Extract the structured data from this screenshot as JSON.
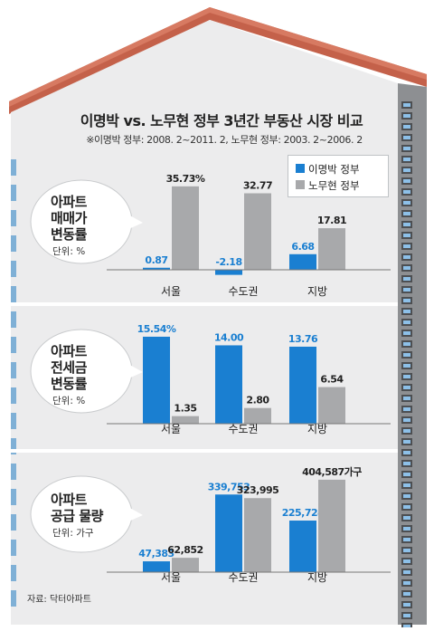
{
  "title": "이명박 vs. 노무현 정부 3년간 부동산 시장 비교",
  "note": "※이명박 정부: 2008. 2~2011. 2, 노무현 정부: 2003. 2~2006. 2",
  "source": "자료: 닥터아파트",
  "legend": [
    {
      "name": "이명박 정부",
      "color": "#1a7fd1"
    },
    {
      "name": "노무현 정부",
      "color": "#a8a9ab"
    }
  ],
  "colors": {
    "lee": "#1a7fd1",
    "roh": "#a8a9ab",
    "lee_label": "#1a7fd1",
    "roh_label": "#222222",
    "roof": "#c4614a",
    "wall": "#ededee"
  },
  "chart_data": [
    {
      "type": "bar",
      "label_lines": [
        "아파트",
        "매매가",
        "변동률"
      ],
      "unit": "단위: %",
      "categories": [
        "서울",
        "수도권",
        "지방"
      ],
      "series": [
        {
          "name": "이명박 정부",
          "values": [
            0.87,
            -2.18,
            6.68
          ]
        },
        {
          "name": "노무현 정부",
          "values": [
            35.73,
            32.77,
            17.81
          ]
        }
      ],
      "value_labels": [
        [
          "0.87",
          "-2.18",
          "6.68"
        ],
        [
          "35.73%",
          "32.77",
          "17.81"
        ]
      ],
      "ylim": [
        -3,
        38
      ]
    },
    {
      "type": "bar",
      "label_lines": [
        "아파트",
        "전세금",
        "변동률"
      ],
      "unit": "단위: %",
      "categories": [
        "서울",
        "수도권",
        "지방"
      ],
      "series": [
        {
          "name": "이명박 정부",
          "values": [
            15.54,
            14.0,
            13.76
          ]
        },
        {
          "name": "노무현 정부",
          "values": [
            1.35,
            2.8,
            6.54
          ]
        }
      ],
      "value_labels": [
        [
          "15.54%",
          "14.00",
          "13.76"
        ],
        [
          "1.35",
          "2.80",
          "6.54"
        ]
      ],
      "ylim": [
        0,
        16.5
      ]
    },
    {
      "type": "bar",
      "label_lines": [
        "아파트",
        "공급 물량"
      ],
      "unit": "단위: 가구",
      "categories": [
        "서울",
        "수도권",
        "지방"
      ],
      "series": [
        {
          "name": "이명박 정부",
          "values": [
            47383,
            339753,
            225724
          ]
        },
        {
          "name": "노무현 정부",
          "values": [
            62852,
            323995,
            404587
          ]
        }
      ],
      "value_labels": [
        [
          "47,383",
          "339,753",
          "225,724"
        ],
        [
          "62,852",
          "323,995",
          "404,587가구"
        ]
      ],
      "ylim": [
        0,
        420000
      ]
    }
  ]
}
